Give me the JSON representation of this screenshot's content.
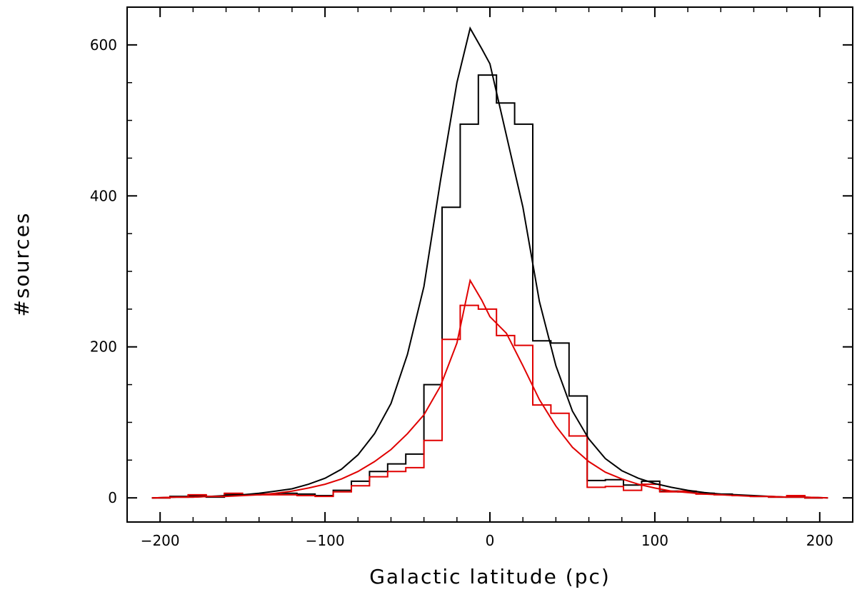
{
  "chart_data": {
    "type": "line",
    "title": "",
    "xlabel": "Galactic latitude (pc)",
    "ylabel": "#sources",
    "xlim": [
      -220,
      220
    ],
    "ylim": [
      -32,
      650
    ],
    "xticks": [
      -200,
      -100,
      0,
      100,
      200
    ],
    "xtick_labels": [
      "−200",
      "−100",
      "0",
      "100",
      "200"
    ],
    "yticks": [
      0,
      200,
      400,
      600
    ],
    "ytick_labels": [
      "0",
      "200",
      "400",
      "600"
    ],
    "x_minor_step": 20,
    "y_minor_step": 50,
    "grid": false,
    "legend": "none",
    "series": [
      {
        "kind": "histogram",
        "color": "#000000",
        "bin_edges": [
          -205,
          -194,
          -183,
          -172,
          -161,
          -150,
          -139,
          -128,
          -117,
          -106,
          -95,
          -84,
          -73,
          -62,
          -51,
          -40,
          -29,
          -18,
          -7,
          4,
          15,
          26,
          37,
          48,
          59,
          70,
          81,
          92,
          103,
          114,
          125,
          136,
          147,
          158,
          169,
          180,
          191,
          202
        ],
        "values": [
          0,
          2,
          3,
          1,
          5,
          4,
          5,
          6,
          5,
          3,
          10,
          22,
          35,
          45,
          58,
          150,
          385,
          495,
          560,
          523,
          495,
          208,
          205,
          135,
          23,
          24,
          17,
          22,
          9,
          8,
          6,
          5,
          3,
          2,
          1,
          1,
          0
        ]
      },
      {
        "kind": "histogram",
        "color": "#e00000",
        "bin_edges": [
          -205,
          -194,
          -183,
          -172,
          -161,
          -150,
          -139,
          -128,
          -117,
          -106,
          -95,
          -84,
          -73,
          -62,
          -51,
          -40,
          -29,
          -18,
          -7,
          4,
          15,
          26,
          37,
          48,
          59,
          70,
          81,
          92,
          103,
          114,
          125,
          136,
          147,
          158,
          169,
          180,
          191,
          202
        ],
        "values": [
          0,
          1,
          4,
          2,
          6,
          4,
          4,
          4,
          3,
          2,
          8,
          16,
          28,
          35,
          40,
          76,
          210,
          255,
          250,
          215,
          202,
          123,
          112,
          82,
          14,
          15,
          10,
          18,
          8,
          9,
          5,
          4,
          3,
          2,
          1,
          3,
          0
        ]
      },
      {
        "kind": "line",
        "color": "#000000",
        "x": [
          -205,
          -190,
          -180,
          -170,
          -160,
          -150,
          -140,
          -130,
          -120,
          -110,
          -100,
          -90,
          -80,
          -70,
          -60,
          -50,
          -40,
          -30,
          -20,
          -12,
          -5,
          0,
          10,
          20,
          30,
          40,
          50,
          60,
          70,
          80,
          90,
          100,
          110,
          120,
          130,
          140,
          150,
          160,
          170,
          180,
          190,
          205
        ],
        "y": [
          0,
          1,
          1,
          2,
          3,
          4,
          6,
          9,
          12,
          18,
          26,
          38,
          57,
          85,
          125,
          190,
          280,
          420,
          550,
          622,
          595,
          575,
          480,
          385,
          260,
          175,
          115,
          78,
          52,
          36,
          26,
          19,
          14,
          10,
          7,
          5,
          4,
          3,
          2,
          1,
          1,
          0
        ]
      },
      {
        "kind": "line",
        "color": "#e00000",
        "x": [
          -205,
          -190,
          -180,
          -170,
          -160,
          -150,
          -140,
          -130,
          -120,
          -110,
          -100,
          -90,
          -80,
          -70,
          -60,
          -50,
          -40,
          -30,
          -20,
          -12,
          -5,
          0,
          10,
          20,
          30,
          40,
          50,
          60,
          70,
          80,
          90,
          100,
          110,
          120,
          130,
          140,
          150,
          160,
          170,
          180,
          190,
          205
        ],
        "y": [
          0,
          1,
          1,
          2,
          2,
          3,
          4,
          6,
          9,
          13,
          18,
          25,
          35,
          48,
          64,
          85,
          110,
          148,
          205,
          288,
          262,
          240,
          218,
          175,
          130,
          95,
          67,
          48,
          34,
          25,
          18,
          13,
          9,
          7,
          5,
          4,
          3,
          2,
          2,
          1,
          1,
          0
        ]
      }
    ]
  }
}
